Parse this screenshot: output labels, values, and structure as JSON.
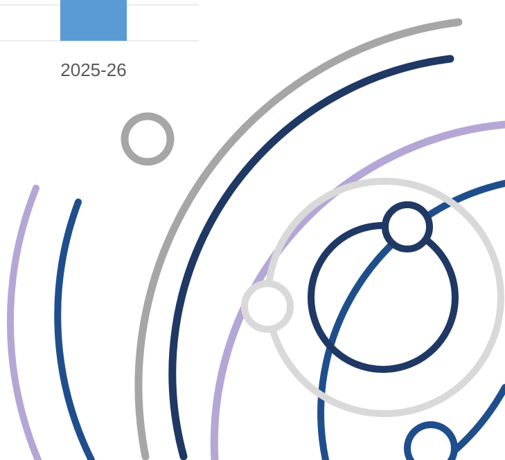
{
  "chart_data": {
    "type": "bar",
    "categories": [
      "2025-26"
    ],
    "values": [
      null
    ],
    "title": "",
    "xlabel": "",
    "ylabel": "",
    "grid": true,
    "bar_color": "#5b9bd5",
    "gridline_color": "#d9d9d9"
  },
  "decoration": {
    "name": "concentric-orbit-graphic",
    "colors": {
      "grey": "#a6a6a6",
      "navy": "#1f3864",
      "lavender": "#b4a7d6",
      "blue": "#1f4e8c",
      "light_grey": "#d9d9d9"
    }
  }
}
